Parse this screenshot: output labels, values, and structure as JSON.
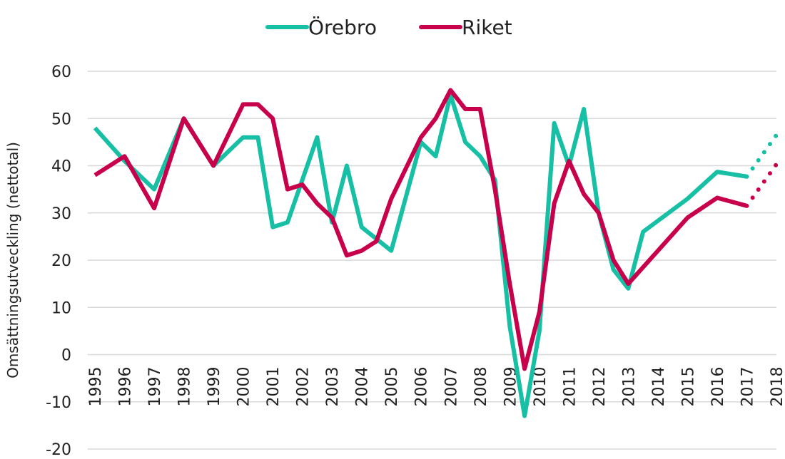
{
  "chart_data": {
    "type": "line",
    "ylabel": "Omsättningsutveckling (nettotal)",
    "xlim": [
      1995,
      2018
    ],
    "xticks": [
      1995,
      1996,
      1997,
      1998,
      1999,
      2000,
      2001,
      2002,
      2003,
      2004,
      2005,
      2006,
      2007,
      2008,
      2009,
      2010,
      2011,
      2012,
      2013,
      2014,
      2015,
      2016,
      2017,
      2018
    ],
    "ylim": [
      -20,
      60
    ],
    "yticks": [
      -20,
      -10,
      0,
      10,
      20,
      30,
      40,
      50,
      60
    ],
    "grid": true,
    "legend": "top",
    "series": [
      {
        "name": "Örebro",
        "color": "#17bfa5",
        "x": [
          1995,
          1996,
          1997,
          1998,
          1999,
          2000,
          2000.5,
          2001,
          2001.5,
          2002.5,
          2003,
          2003.5,
          2004,
          2005,
          2006,
          2006.5,
          2007,
          2007.5,
          2008,
          2008.5,
          2009,
          2009.5,
          2010,
          2010.5,
          2011,
          2011.5,
          2012,
          2012.5,
          2013,
          2013.5,
          2015,
          2016,
          2017
        ],
        "values": [
          48,
          41,
          35,
          50,
          40,
          46,
          46,
          27,
          28,
          46,
          28,
          40,
          27,
          22,
          45,
          42,
          55,
          45,
          42,
          37,
          6,
          -13,
          5,
          49,
          40,
          52,
          30,
          18,
          14,
          26,
          33,
          38.7,
          37.7
        ],
        "forecast_x": [
          2018
        ],
        "forecast_values": [
          46.5
        ]
      },
      {
        "name": "Riket",
        "color": "#c8004b",
        "x": [
          1995,
          1996,
          1997,
          1998,
          1999,
          2000,
          2000.5,
          2001,
          2001.5,
          2002,
          2002.5,
          2003,
          2003.5,
          2004,
          2004.5,
          2005,
          2006,
          2006.5,
          2007,
          2007.5,
          2008,
          2008.5,
          2009,
          2009.5,
          2010,
          2010.5,
          2011,
          2011.5,
          2012,
          2012.5,
          2013,
          2014,
          2015,
          2016,
          2017
        ],
        "values": [
          38,
          42,
          31,
          50,
          40,
          53,
          53,
          50,
          35,
          36,
          32,
          29,
          21,
          22,
          24,
          33,
          46,
          50,
          56,
          52,
          52,
          35,
          15,
          -3,
          9,
          32,
          41,
          34,
          30,
          20,
          15,
          22,
          29,
          33.2,
          31.5
        ],
        "forecast_x": [
          2018
        ],
        "forecast_values": [
          40.3
        ]
      }
    ]
  }
}
